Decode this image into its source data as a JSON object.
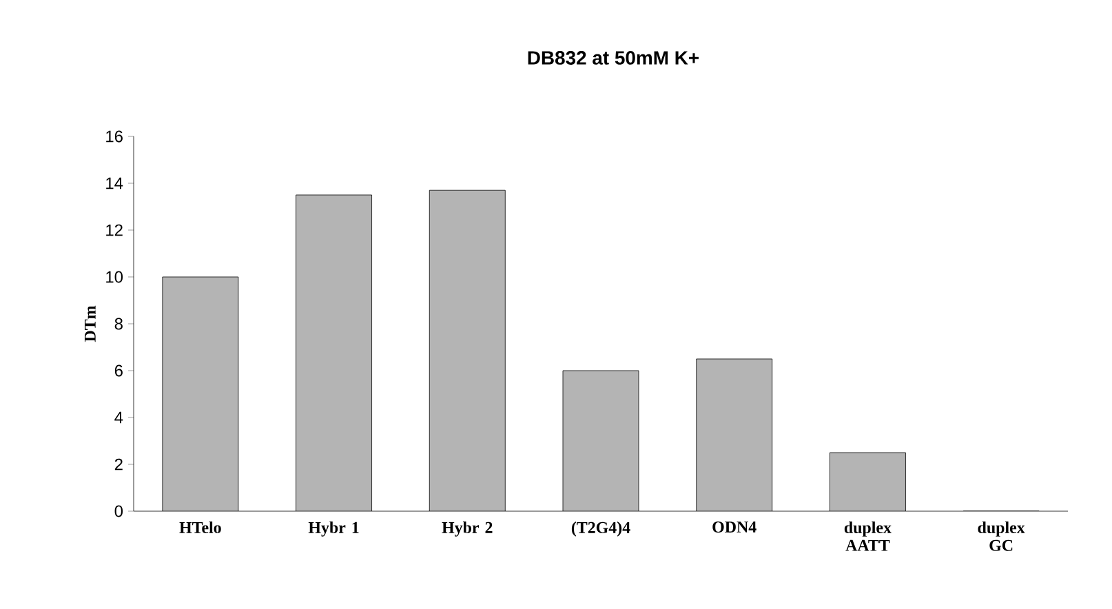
{
  "chart_data": {
    "type": "bar",
    "title": "DB832 at 50mM K+",
    "ylabel": "DTm",
    "categories": [
      "HTelo",
      "Hybr 1",
      "Hybr 2",
      "(T2G4)4",
      "ODN4",
      "duplex AATT",
      "duplex GC"
    ],
    "values": [
      10,
      13.5,
      13.7,
      6,
      6.5,
      2.5,
      0
    ],
    "color": "#b4b4b4",
    "ylim": [
      0,
      16
    ],
    "yticks": [
      0,
      2,
      4,
      6,
      8,
      10,
      12,
      14,
      16
    ]
  }
}
